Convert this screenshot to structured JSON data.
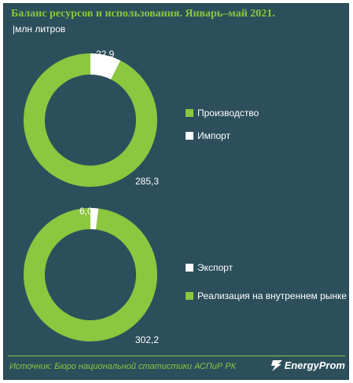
{
  "title": "Баланс ресурсов и использования. Январь–май 2021.",
  "unit": "|млн литров",
  "source": "Источник: Бюро национальной  статистики АСПиР РК",
  "logo_text": "EnergyProm",
  "logo_icon": "lightning-icon",
  "colors": {
    "primary": "#8dc63f",
    "secondary": "#ffffff",
    "background": "#2c4f5b"
  },
  "chart_data": [
    {
      "type": "pie",
      "donut": true,
      "categories": [
        "Производство",
        "Импорт"
      ],
      "values": [
        285.3,
        22.9
      ],
      "value_labels": [
        "285,3",
        "22,9"
      ],
      "colors": [
        "#8dc63f",
        "#ffffff"
      ],
      "legend": "right"
    },
    {
      "type": "pie",
      "donut": true,
      "categories": [
        "Экспорт",
        "Реализация на внутреннем рынке"
      ],
      "values": [
        6.0,
        302.2
      ],
      "value_labels": [
        "6,0",
        "302,2"
      ],
      "colors": [
        "#ffffff",
        "#8dc63f"
      ],
      "legend": "right"
    }
  ]
}
